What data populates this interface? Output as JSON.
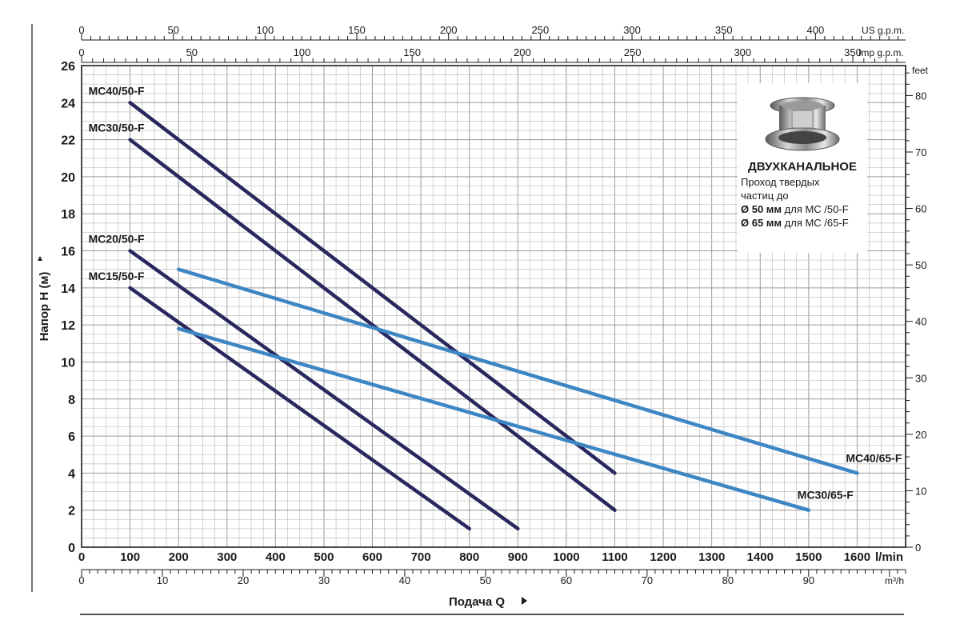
{
  "chart_data": {
    "type": "line",
    "ylabel": "Напор H (м)",
    "xlabel": "Подача Q",
    "x_unit_main": "l/min",
    "x_unit_secondary": "m³/h",
    "top_axis_1_unit": "US g.p.m.",
    "top_axis_2_unit": "Imp g.p.m.",
    "right_axis_unit": "feet",
    "xlim": [
      0,
      1700
    ],
    "ylim": [
      0,
      26
    ],
    "grid": true,
    "x_ticks": [
      0,
      100,
      200,
      300,
      400,
      500,
      600,
      700,
      800,
      900,
      1000,
      1100,
      1200,
      1300,
      1400,
      1500,
      1600
    ],
    "y_ticks": [
      0,
      2,
      4,
      6,
      8,
      10,
      12,
      14,
      16,
      18,
      20,
      22,
      24,
      26
    ],
    "m3h_ticks": [
      0,
      10,
      20,
      30,
      40,
      50,
      60,
      70,
      80,
      90
    ],
    "usgpm_ticks": [
      0,
      50,
      100,
      150,
      200,
      250,
      300,
      350,
      400
    ],
    "impgpm_ticks": [
      0,
      50,
      100,
      150,
      200,
      250,
      300,
      350
    ],
    "feet_ticks": [
      0,
      10,
      20,
      30,
      40,
      50,
      60,
      70,
      80
    ],
    "series": [
      {
        "name": "MC40/50-F",
        "color": "#28285e",
        "x": [
          100,
          1100
        ],
        "y": [
          24,
          4
        ]
      },
      {
        "name": "MC30/50-F",
        "color": "#28285e",
        "x": [
          100,
          1100
        ],
        "y": [
          22,
          2
        ]
      },
      {
        "name": "MC20/50-F",
        "color": "#28285e",
        "x": [
          100,
          900
        ],
        "y": [
          16,
          1
        ]
      },
      {
        "name": "MC15/50-F",
        "color": "#28285e",
        "x": [
          100,
          800
        ],
        "y": [
          14,
          1
        ]
      },
      {
        "name": "MC40/65-F",
        "color": "#3d86c4",
        "x": [
          200,
          1600
        ],
        "y": [
          15,
          4
        ]
      },
      {
        "name": "MC30/65-F",
        "color": "#3d86c4",
        "x": [
          200,
          1500
        ],
        "y": [
          11.8,
          2
        ]
      }
    ]
  },
  "info": {
    "title": "ДВУХКАНАЛЬНОЕ",
    "line1": "Проход твердых",
    "line2": "частиц до",
    "line3_bold": "Ø 50 мм",
    "line3_rest": " для MC /50-F",
    "line4_bold": "Ø 65 мм",
    "line4_rest": " для MC /65-F"
  }
}
